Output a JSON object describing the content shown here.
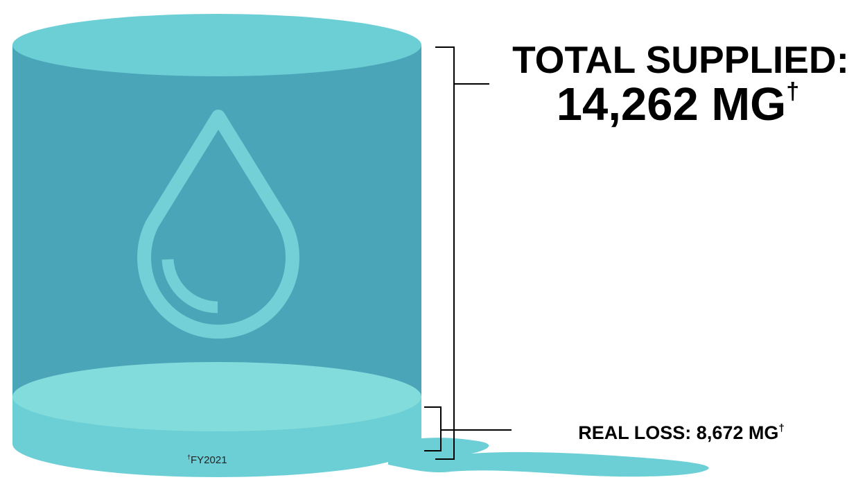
{
  "total": {
    "label": "TOTAL SUPPLIED:",
    "value": "14,262 MG",
    "mark": "†"
  },
  "loss": {
    "value": "REAL LOSS: 8,672 MG",
    "mark": "†"
  },
  "footnote": {
    "mark": "†",
    "text": "FY2021"
  }
}
